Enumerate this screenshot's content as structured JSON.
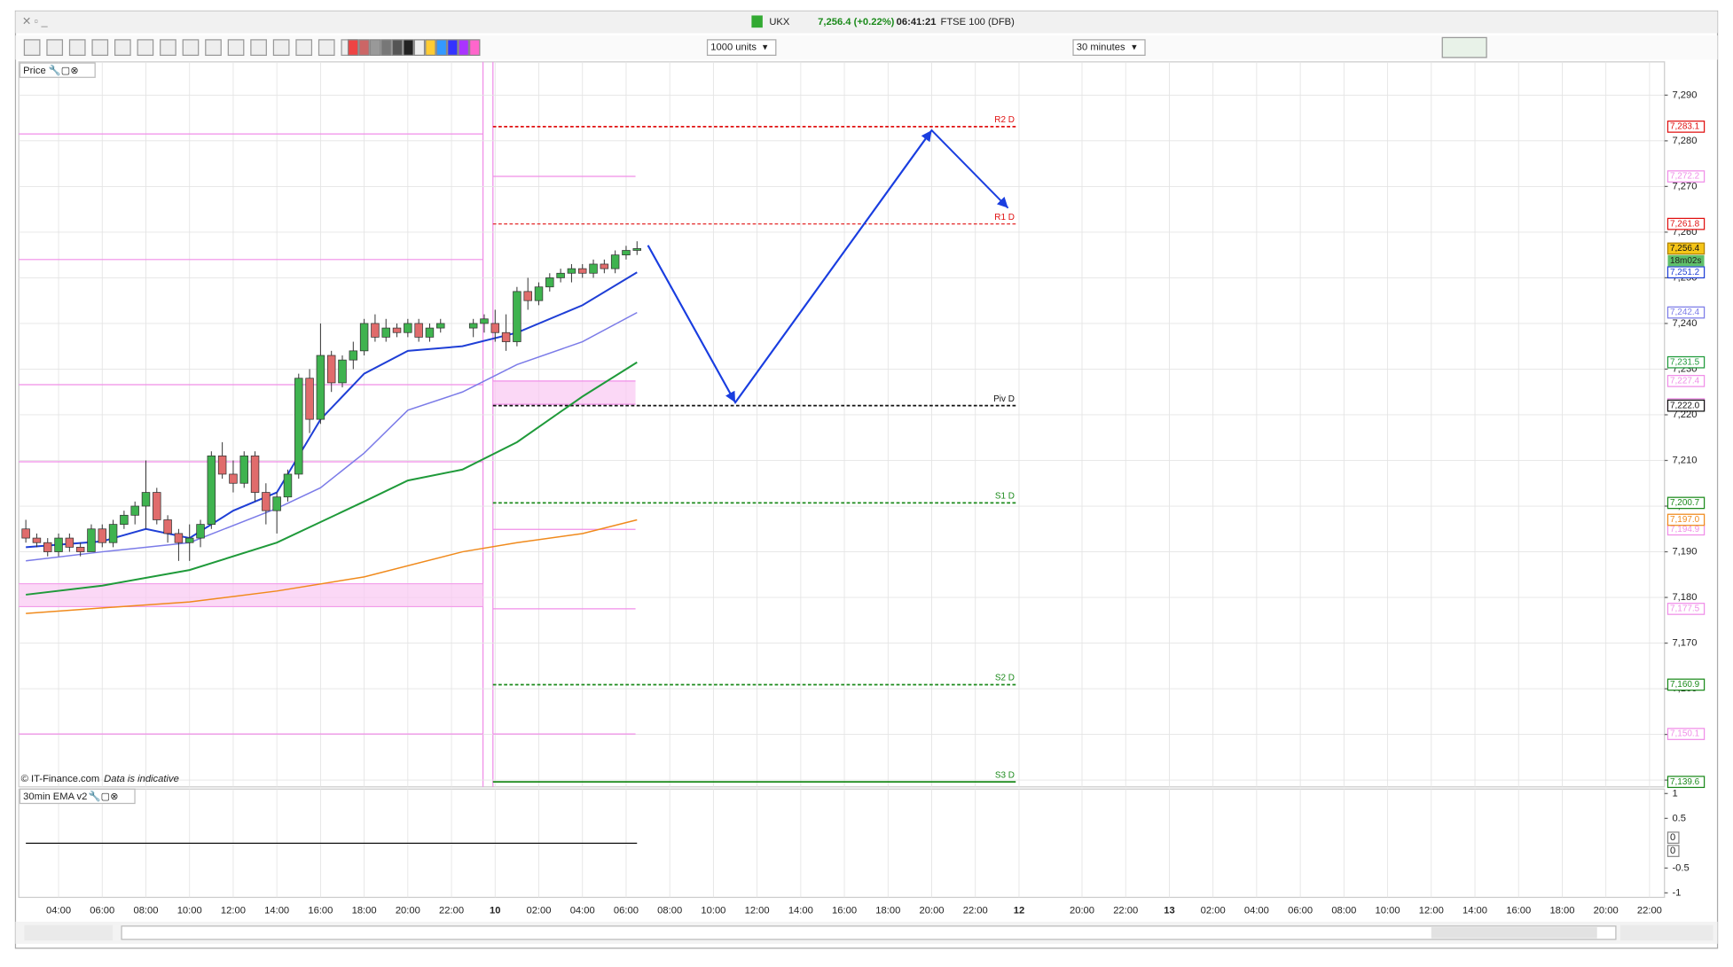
{
  "header": {
    "symbol": "UKX",
    "quote": "7,256.4 (+0.22%)",
    "time": "06:41:21",
    "instrument": "FTSE 100 (DFB)"
  },
  "toolbar": {
    "size": "1000 units",
    "interval": "30 minutes"
  },
  "chart_data": [
    {
      "type": "candlestick",
      "title": "Price",
      "credit": "© IT-Finance.com",
      "note": "Data is indicative",
      "ylim": [
        7139,
        7296.8
      ],
      "yticks": [
        {
          "value": 7140,
          "label": "7,140"
        },
        {
          "value": 7150,
          "label": "7,150"
        },
        {
          "value": 7160,
          "label": "7,160"
        },
        {
          "value": 7170,
          "label": "7,170"
        },
        {
          "value": 7180,
          "label": "7,180"
        },
        {
          "value": 7190,
          "label": "7,190"
        },
        {
          "value": 7200,
          "label": "7,200"
        },
        {
          "value": 7210,
          "label": "7,210"
        },
        {
          "value": 7220,
          "label": "7,220"
        },
        {
          "value": 7230,
          "label": "7,230"
        },
        {
          "value": 7240,
          "label": "7,240"
        },
        {
          "value": 7250,
          "label": "7,250"
        },
        {
          "value": 7260,
          "label": "7,260"
        },
        {
          "value": 7270,
          "label": "7,270"
        },
        {
          "value": 7280,
          "label": "7,280"
        },
        {
          "value": 7290,
          "label": "7,290"
        }
      ],
      "xticks": [
        "04:00",
        "06:00",
        "08:00",
        "10:00",
        "12:00",
        "14:00",
        "16:00",
        "18:00",
        "20:00",
        "22:00",
        "10",
        "02:00",
        "04:00",
        "06:00",
        "08:00",
        "10:00",
        "12:00",
        "14:00",
        "16:00",
        "18:00",
        "20:00",
        "22:00",
        "12",
        "20:00",
        "22:00",
        "13",
        "02:00",
        "04:00",
        "06:00",
        "08:00",
        "10:00",
        "12:00",
        "14:00",
        "16:00",
        "18:00",
        "20:00",
        "22:00"
      ],
      "grid": true,
      "candles": {
        "x": [
          "02:30",
          "03:00",
          "03:30",
          "04:00",
          "04:30",
          "05:00",
          "05:30",
          "06:00",
          "06:30",
          "07:00",
          "07:30",
          "08:00",
          "08:30",
          "09:00",
          "09:30",
          "10:00",
          "10:30",
          "11:00",
          "11:30",
          "12:00",
          "12:30",
          "13:00",
          "13:30",
          "14:00",
          "14:30",
          "15:00",
          "15:30",
          "16:00",
          "16:30",
          "17:00",
          "17:30",
          "18:00",
          "18:30",
          "19:00",
          "19:30",
          "20:00",
          "20:30",
          "21:00",
          "21:30",
          "23:00",
          "23:30",
          "10 00:00",
          "10 00:30",
          "10 01:00",
          "10 01:30",
          "10 02:00",
          "10 02:30",
          "10 03:00",
          "10 03:30",
          "10 04:00",
          "10 04:30",
          "10 05:00",
          "10 05:30",
          "10 06:00",
          "10 06:30"
        ],
        "open": [
          7195,
          7193,
          7192,
          7190,
          7193,
          7191,
          7190,
          7195,
          7192,
          7196,
          7198,
          7200,
          7203,
          7197,
          7194,
          7192,
          7193,
          7196,
          7211,
          7207,
          7205,
          7211,
          7203,
          7199,
          7202,
          7207,
          7228,
          7219,
          7233,
          7227,
          7232,
          7234,
          7240,
          7237,
          7239,
          7238,
          7240,
          7237,
          7239,
          7239,
          7240,
          7240,
          7238,
          7236,
          7247,
          7245,
          7248,
          7250,
          7251,
          7252,
          7251,
          7253,
          7252,
          7255,
          7256
        ],
        "high": [
          7197,
          7194,
          7193,
          7194,
          7194,
          7192,
          7196,
          7196,
          7197,
          7199,
          7201,
          7210,
          7204,
          7198,
          7195,
          7196,
          7197,
          7212,
          7214,
          7210,
          7212,
          7212,
          7205,
          7203,
          7208,
          7229,
          7230,
          7240,
          7234,
          7233,
          7236,
          7241,
          7242,
          7241,
          7240,
          7241,
          7241,
          7240,
          7241,
          7241,
          7242,
          7243,
          7242,
          7248,
          7250,
          7249,
          7251,
          7252,
          7253,
          7253,
          7254,
          7254,
          7256,
          7257,
          7258
        ],
        "low": [
          7192,
          7191,
          7189,
          7189,
          7190,
          7189,
          7190,
          7191,
          7191,
          7195,
          7196,
          7195,
          7196,
          7192,
          7188,
          7188,
          7191,
          7195,
          7206,
          7203,
          7204,
          7201,
          7196,
          7194,
          7201,
          7206,
          7216,
          7218,
          7225,
          7226,
          7230,
          7233,
          7236,
          7236,
          7237,
          7237,
          7236,
          7236,
          7238,
          7237,
          7238,
          7236,
          7234,
          7235,
          7243,
          7244,
          7247,
          7249,
          7249,
          7250,
          7250,
          7251,
          7251,
          7254,
          7255
        ],
        "close": [
          7193,
          7192,
          7190,
          7193,
          7191,
          7190,
          7195,
          7192,
          7196,
          7198,
          7200,
          7203,
          7197,
          7194,
          7192,
          7193,
          7196,
          7211,
          7207,
          7205,
          7211,
          7203,
          7199,
          7202,
          7207,
          7228,
          7219,
          7233,
          7227,
          7232,
          7234,
          7240,
          7237,
          7239,
          7238,
          7240,
          7237,
          7239,
          7240,
          7240,
          7241,
          7238,
          7236,
          7247,
          7245,
          7248,
          7250,
          7251,
          7252,
          7251,
          7253,
          7252,
          7255,
          7256,
          7256.4
        ],
        "up_color": "#3fb34f",
        "down_color": "#e06c6c"
      },
      "current_label": "7,256.4",
      "countdown": "18m02s",
      "series": [
        {
          "color": "#1f3fd6",
          "x": [
            "02:30",
            "06:00",
            "08:00",
            "10:00",
            "12:00",
            "14:00",
            "16:00",
            "18:00",
            "20:00",
            "22:30",
            "10 01:00",
            "10 04:00",
            "10 06:30"
          ],
          "values": [
            7191,
            7192.3,
            7195,
            7193,
            7199,
            7203,
            7219,
            7229,
            7234,
            7235,
            7238,
            7244,
            7251.2
          ],
          "value_label": "7,251.2"
        },
        {
          "color": "#7b7be8",
          "x": [
            "02:30",
            "06:00",
            "10:00",
            "14:00",
            "16:00",
            "18:00",
            "20:00",
            "22:30",
            "10 01:00",
            "10 04:00",
            "10 06:30"
          ],
          "values": [
            7188,
            7190,
            7192,
            7199.5,
            7204,
            7211.6,
            7221,
            7225,
            7231,
            7236,
            7242.4
          ],
          "value_label": "7,242.4"
        },
        {
          "color": "#1f9a3a",
          "x": [
            "02:30",
            "06:00",
            "10:00",
            "14:00",
            "18:00",
            "20:00",
            "22:30",
            "10 01:00",
            "10 04:00",
            "10 06:30"
          ],
          "values": [
            7180.6,
            7182.6,
            7186,
            7192,
            7201,
            7205.6,
            7208,
            7214,
            7224,
            7231.5
          ],
          "value_label": "7,231.5"
        },
        {
          "color": "#f08a1c",
          "x": [
            "02:30",
            "06:00",
            "10:00",
            "14:00",
            "18:00",
            "22:30",
            "10 01:00",
            "10 04:00",
            "10 06:30"
          ],
          "values": [
            7176.5,
            7177.7,
            7179,
            7181.4,
            7184.5,
            7190,
            7192,
            7194,
            7197.0
          ],
          "value_label": "7,197.0"
        }
      ],
      "projection": {
        "color": "#1a3ee0",
        "x": [
          "10 07:00",
          "10 11:00",
          "10 20:00",
          "10 23:30"
        ],
        "values": [
          7257.1,
          7222.7,
          7282.3,
          7265.3
        ]
      },
      "pivots": [
        {
          "name": "R2 D",
          "value": 7283.1,
          "label": "7,283.1",
          "color": "#e01010"
        },
        {
          "name": "R1 D",
          "value": 7261.8,
          "label": "7,261.8",
          "color": "#e01010"
        },
        {
          "name": "Piv D",
          "value": 7222.0,
          "label": "7,222.0",
          "color": "#111111"
        },
        {
          "name": "S1 D",
          "value": 7200.7,
          "label": "7,200.7",
          "color": "#1b8a1b"
        },
        {
          "name": "S2 D",
          "value": 7160.9,
          "label": "7,160.9",
          "color": "#1b8a1b"
        },
        {
          "name": "S3 D",
          "value": 7139.6,
          "label": "7,139.6",
          "color": "#1b8a1b"
        }
      ],
      "prior_levels": {
        "color": "#f08ee8",
        "values": [
          7272.2,
          7227.4,
          7222.3,
          7194.9,
          7177.5,
          7150.1
        ],
        "value_labels": [
          "7,272.2",
          "7,227.4",
          "7,222.3",
          "7,194.9",
          "7,177.5",
          "7,150.1"
        ],
        "previous_values": [
          7281.5,
          7254,
          7226.6,
          7209.7,
          7183,
          7178,
          7150.1
        ]
      }
    },
    {
      "type": "line",
      "title": "30min EMA v2",
      "ylim": [
        -1.09,
        1.09
      ],
      "yticks": [
        1,
        0.5,
        -0.5,
        -1
      ],
      "series": [
        {
          "color": "#111111",
          "x": [
            "02:30",
            "10 06:30"
          ],
          "values": [
            0,
            0
          ],
          "value_labels": [
            "0",
            "0"
          ]
        }
      ]
    }
  ]
}
